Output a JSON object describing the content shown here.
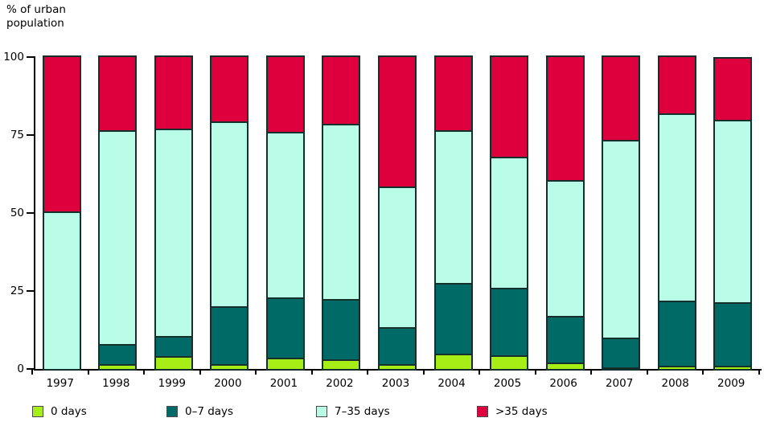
{
  "title": {
    "line1": "% of urban",
    "line2": "population"
  },
  "chart_data": {
    "type": "bar",
    "stacked": true,
    "title": "",
    "ylabel": "% of urban population",
    "xlabel": "",
    "ylim": [
      0,
      100
    ],
    "yticks": [
      0,
      25,
      50,
      75,
      100
    ],
    "ytick_labels": [
      "0",
      "25",
      "50",
      "75",
      "100"
    ],
    "grid": false,
    "legend_position": "bottom",
    "categories": [
      "1997",
      "1998",
      "1999",
      "2000",
      "2001",
      "2002",
      "2003",
      "2004",
      "2005",
      "2006",
      "2007",
      "2008",
      "2009"
    ],
    "series": [
      {
        "name": "0 days",
        "color": "#a7ee17",
        "values": [
          0,
          1.5,
          4,
          1.5,
          3.5,
          3,
          1.5,
          5,
          4.5,
          2,
          0.5,
          1,
          1
        ]
      },
      {
        "name": "0–7 days",
        "color": "#006b66",
        "values": [
          0,
          6.5,
          6.5,
          18.5,
          19.5,
          19.5,
          12,
          22.5,
          21.5,
          15,
          9.5,
          21,
          20.5
        ]
      },
      {
        "name": "7–35 days",
        "color": "#b9fce8",
        "values": [
          50.5,
          68.5,
          66.5,
          59.5,
          53,
          56,
          45,
          49,
          42,
          43.5,
          63.5,
          60,
          58.5
        ]
      },
      {
        "name": ">35 days",
        "color": "#de003c",
        "values": [
          49.5,
          23.5,
          23,
          20.5,
          24,
          21.5,
          41.5,
          23.5,
          32,
          39.5,
          26.5,
          18,
          19.5
        ]
      }
    ]
  },
  "colors": {
    "axis": "#000000",
    "bar_border": "#14302c",
    "green": "#a7ee17",
    "teal": "#006b66",
    "cyan": "#b9fce8",
    "red": "#de003c"
  }
}
